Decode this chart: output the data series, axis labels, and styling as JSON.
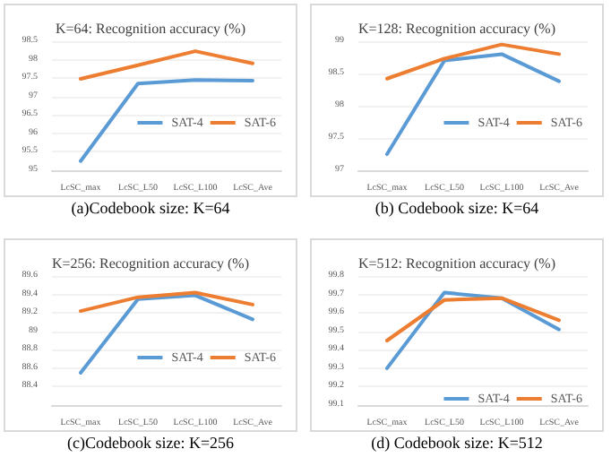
{
  "chart_data": [
    {
      "type": "line",
      "title": "K=64: Recognition accuracy (%)",
      "categories": [
        "LcSC_max",
        "LcSC_L50",
        "LcSC_L100",
        "LcSC_Ave"
      ],
      "ylim": [
        95,
        98.5
      ],
      "yticks": [
        95,
        95.5,
        96,
        96.5,
        97,
        97.5,
        98,
        98.5
      ],
      "grid": "y",
      "legend": "right",
      "marker": "none",
      "annotations": [
        "(a)Codebook size: K=64"
      ],
      "series": [
        {
          "name": "SAT-4",
          "color": "#5b9bd5",
          "values": [
            95.25,
            97.35,
            97.45,
            97.43
          ]
        },
        {
          "name": "SAT-6",
          "color": "#ed7d31",
          "values": [
            97.48,
            97.85,
            98.23,
            97.9
          ]
        }
      ]
    },
    {
      "type": "line",
      "title": "K=128: Recognition accuracy (%)",
      "categories": [
        "LcSC_max",
        "LcSC_L50",
        "LcSC_L100",
        "LcSC_Ave"
      ],
      "ylim": [
        97,
        99
      ],
      "yticks": [
        97,
        97.5,
        98,
        98.5,
        99
      ],
      "grid": "y",
      "legend": "right",
      "marker": "none",
      "annotations": [
        "(b) Codebook size: K=64"
      ],
      "series": [
        {
          "name": "SAT-4",
          "color": "#5b9bd5",
          "values": [
            97.25,
            98.7,
            98.8,
            98.38
          ]
        },
        {
          "name": "SAT-6",
          "color": "#ed7d31",
          "values": [
            98.42,
            98.73,
            98.95,
            98.8
          ]
        }
      ]
    },
    {
      "type": "line",
      "title": "K=256: Recognition accuracy (%)",
      "categories": [
        "LcSC_max",
        "LcSC_L50",
        "LcSC_L100",
        "LcSC_Ave"
      ],
      "ylim": [
        88.2,
        89.6
      ],
      "yticks": [
        88.4,
        88.6,
        88.8,
        89,
        89.2,
        89.4,
        89.6
      ],
      "grid": "y",
      "legend": "right",
      "marker": "none",
      "annotations": [
        "(c)Codebook size: K=256"
      ],
      "series": [
        {
          "name": "SAT-4",
          "color": "#5b9bd5",
          "values": [
            88.55,
            89.35,
            89.39,
            89.13
          ]
        },
        {
          "name": "SAT-6",
          "color": "#ed7d31",
          "values": [
            89.22,
            89.37,
            89.42,
            89.29
          ]
        }
      ]
    },
    {
      "type": "line",
      "title": "K=512: Recognition accuracy (%)",
      "categories": [
        "LcSC_max",
        "LcSC_L50",
        "LcSC_L100",
        "LcSC_Ave"
      ],
      "ylim": [
        99.1,
        99.8
      ],
      "yticks": [
        99.1,
        99.2,
        99.3,
        99.4,
        99.5,
        99.6,
        99.7,
        99.8
      ],
      "grid": "y",
      "legend": "bottom right",
      "marker": "none",
      "annotations": [
        "(d) Codebook size: K=512"
      ],
      "series": [
        {
          "name": "SAT-4",
          "color": "#5b9bd5",
          "values": [
            99.3,
            99.71,
            99.68,
            99.51
          ]
        },
        {
          "name": "SAT-6",
          "color": "#ed7d31",
          "values": [
            99.45,
            99.67,
            99.68,
            99.56
          ]
        }
      ]
    }
  ]
}
